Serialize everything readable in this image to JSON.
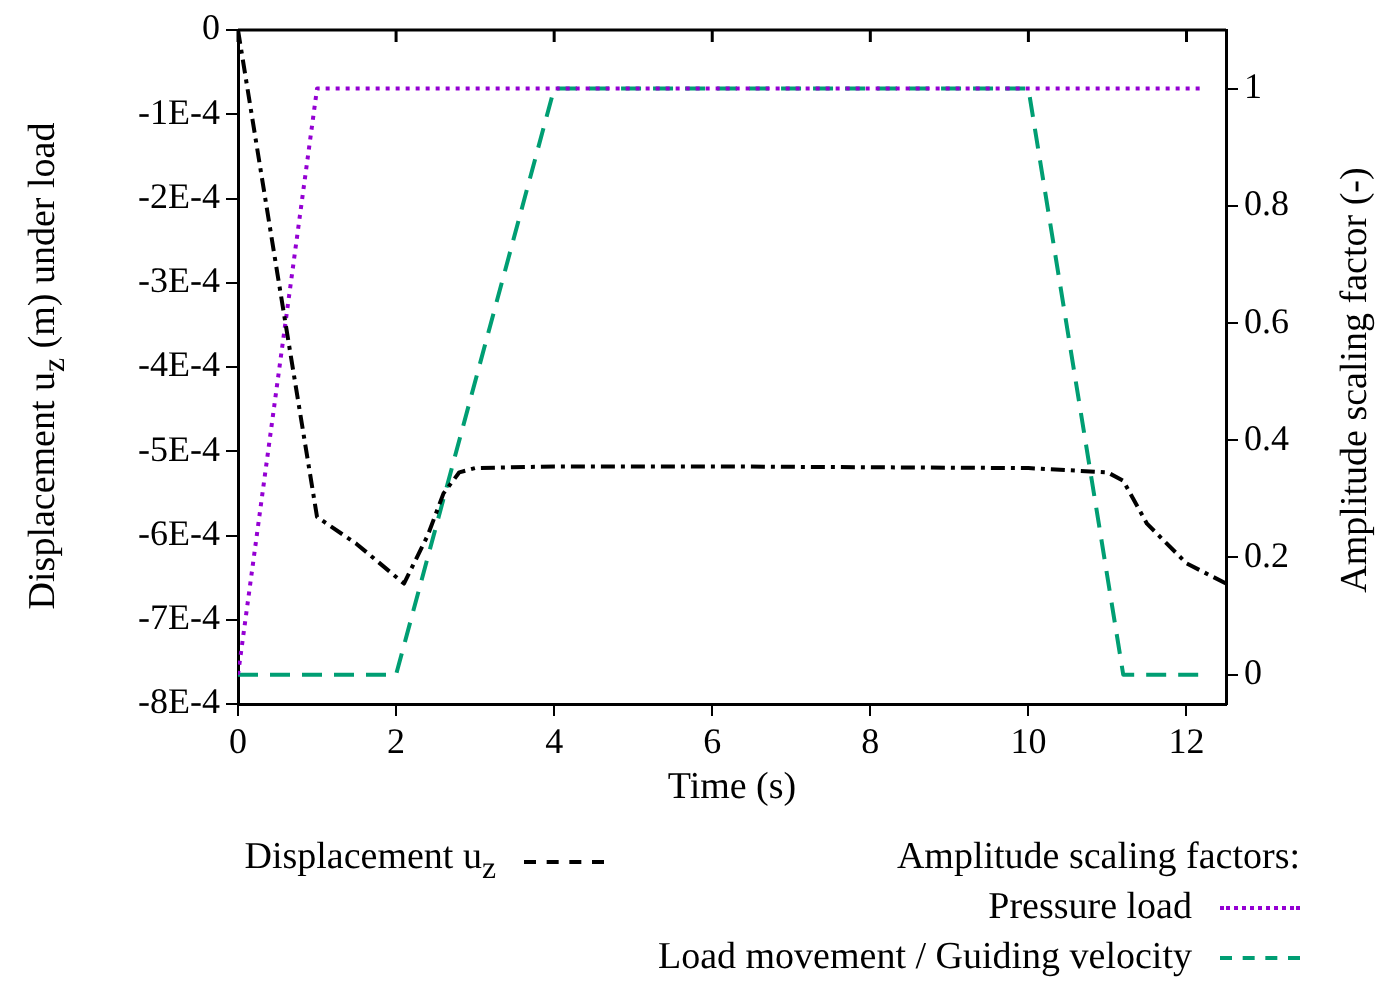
{
  "chart_data": {
    "type": "line",
    "xlabel": "Time (s)",
    "ylabel": "Displacement u$_{z}$ (m) under load",
    "y2label": "Amplitude scaling factor (-)",
    "legend_title": "Amplitude scaling factors:",
    "legend": "bottom",
    "grid": false,
    "xlim": [
      0,
      12.5
    ],
    "xticks": [
      0,
      2,
      4,
      6,
      8,
      10,
      12
    ],
    "ylim": [
      -0.0008,
      0
    ],
    "yticks": [
      {
        "value": 0,
        "label": "0"
      },
      {
        "value": -0.0001,
        "label": "-1E-4"
      },
      {
        "value": -0.0002,
        "label": "-2E-4"
      },
      {
        "value": -0.0003,
        "label": "-3E-4"
      },
      {
        "value": -0.0004,
        "label": "-4E-4"
      },
      {
        "value": -0.0005,
        "label": "-5E-4"
      },
      {
        "value": -0.0006,
        "label": "-6E-4"
      },
      {
        "value": -0.0007,
        "label": "-7E-4"
      },
      {
        "value": -0.0008,
        "label": "-8E-4"
      }
    ],
    "y2lim": [
      -0.05,
      1.1
    ],
    "y2ticks": [
      0,
      0.2,
      0.4,
      0.6,
      0.8,
      1
    ],
    "series": [
      {
        "name": "Displacement u$_{z}$",
        "color": "#000000",
        "line_style": "dashdot",
        "x": [
          0,
          0.5,
          1,
          1.5,
          2.1,
          2.4,
          2.6,
          2.8,
          3,
          4,
          6,
          8,
          10,
          11,
          11.2,
          11.5,
          12,
          12.5
        ],
        "values": [
          0,
          -0.00029,
          -0.000578,
          -0.00061,
          -0.000657,
          -0.0006,
          -0.00055,
          -0.000525,
          -0.00052,
          -0.000518,
          -0.000518,
          -0.000519,
          -0.00052,
          -0.000525,
          -0.000535,
          -0.000586,
          -0.000633,
          -0.000657
        ]
      },
      {
        "name": "Pressure load",
        "color": "#9400d3",
        "line_style": "dotted",
        "axis": "y2",
        "x": [
          0,
          1,
          12.2
        ],
        "values": [
          0,
          1,
          1
        ]
      },
      {
        "name": "Load movement / Guiding velocity",
        "color": "#009e73",
        "line_style": "dashed",
        "axis": "y2",
        "x": [
          0,
          2,
          4,
          10,
          11.2,
          12.2
        ],
        "values": [
          0,
          0,
          1,
          1,
          0,
          0
        ]
      }
    ]
  }
}
